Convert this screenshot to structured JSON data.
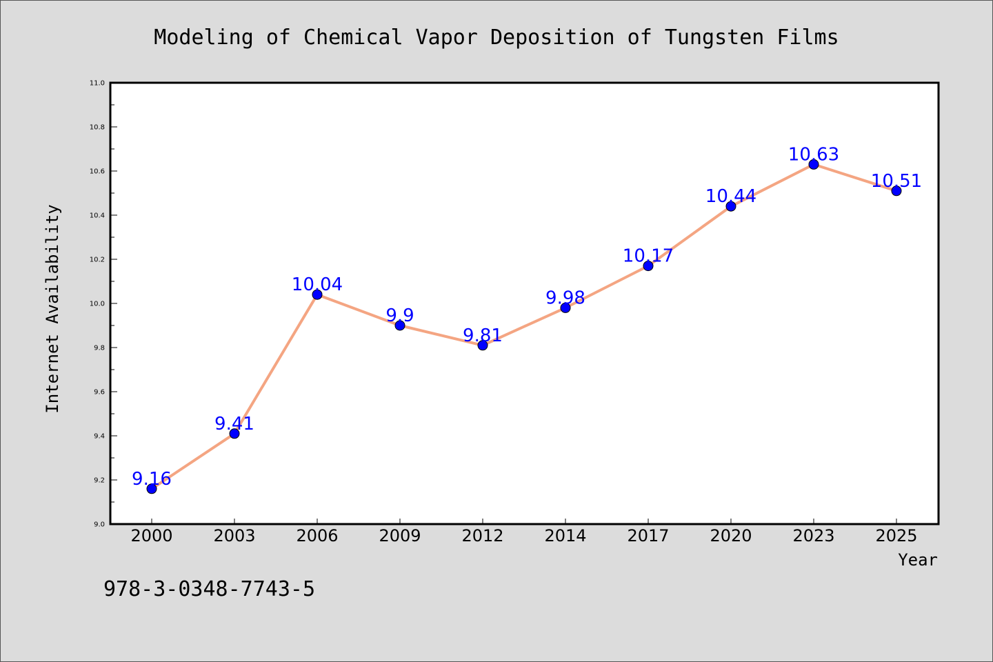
{
  "chart_data": {
    "type": "line",
    "title": "Modeling of Chemical Vapor Deposition of Tungsten Films",
    "xlabel": "Year",
    "ylabel": "Internet Availability",
    "categories": [
      "2000",
      "2003",
      "2006",
      "2009",
      "2012",
      "2014",
      "2017",
      "2020",
      "2023",
      "2025"
    ],
    "series": [
      {
        "values": [
          9.16,
          9.41,
          10.04,
          9.9,
          9.81,
          9.98,
          10.17,
          10.44,
          10.63,
          10.51
        ],
        "labels": [
          "9.16",
          "9.41",
          "10.04",
          "9.9",
          "9.81",
          "9.98",
          "10.17",
          "10.44",
          "10.63",
          "10.51"
        ],
        "line_color": "#f4a582",
        "marker_color": "#0000ff"
      }
    ],
    "ylim": [
      9.0,
      11.0
    ],
    "yticks": [
      "9.0",
      "9.2",
      "9.4",
      "9.6",
      "9.8",
      "10.0",
      "10.2",
      "10.4",
      "10.6",
      "10.8",
      "11.0"
    ],
    "grid": false,
    "legend": "none"
  },
  "footer": {
    "isbn": "978-3-0348-7743-5"
  }
}
